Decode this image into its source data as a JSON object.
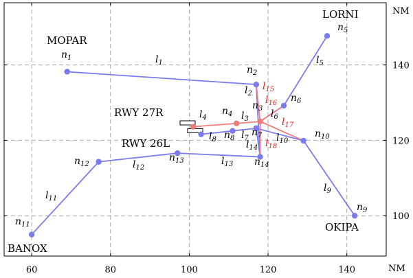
{
  "axes": {
    "x_unit": "NM",
    "y_unit": "NM",
    "x_ticks": [
      "60",
      "80",
      "100",
      "120",
      "140"
    ],
    "y_ticks": [
      "100",
      "120",
      "140"
    ],
    "xlim": [
      53,
      150
    ],
    "ylim": [
      89.3,
      156.5
    ],
    "grid": "dashed"
  },
  "colors": {
    "route": "#7b7bf0",
    "red_route": "#f07b7b",
    "red_label": "#e01e1e",
    "grid": "#aaaaaa",
    "node": "#7b7bf0",
    "red_node": "#f07b7b"
  },
  "place_names": {
    "MOPAR": "MOPAR",
    "LORNI": "LORNI",
    "BANOX": "BANOX",
    "OKIPA": "OKIPA",
    "RWY27R": "RWY 27R",
    "RWY26L": "RWY 26L"
  },
  "nodes": [
    {
      "id": "n1",
      "base": "n",
      "sub": "1",
      "x": 69,
      "y": 138.2
    },
    {
      "id": "n2",
      "base": "n",
      "sub": "2",
      "x": 117,
      "y": 134.8
    },
    {
      "id": "n3",
      "base": "n",
      "sub": "3",
      "x": 118,
      "y": 125.0
    },
    {
      "id": "n4",
      "base": "n",
      "sub": "4",
      "x": 112,
      "y": 124.5
    },
    {
      "id": "n5",
      "base": "n",
      "sub": "5",
      "x": 135,
      "y": 147.7
    },
    {
      "id": "n6",
      "base": "n",
      "sub": "6",
      "x": 124,
      "y": 129.2
    },
    {
      "id": "n7",
      "base": "n",
      "sub": "7",
      "x": 117,
      "y": 123.2
    },
    {
      "id": "n8",
      "base": "n",
      "sub": "8",
      "x": 111,
      "y": 122.5
    },
    {
      "id": "n9",
      "base": "n",
      "sub": "9",
      "x": 142,
      "y": 100.0
    },
    {
      "id": "n10",
      "base": "n",
      "sub": "10",
      "x": 129,
      "y": 119.9
    },
    {
      "id": "n11",
      "base": "n",
      "sub": "11",
      "x": 60,
      "y": 95.0
    },
    {
      "id": "n12",
      "base": "n",
      "sub": "12",
      "x": 77,
      "y": 114.3
    },
    {
      "id": "n13",
      "base": "n",
      "sub": "13",
      "x": 97,
      "y": 116.6
    },
    {
      "id": "n14",
      "base": "n",
      "sub": "14",
      "x": 118,
      "y": 115.6
    },
    {
      "id": "rA",
      "x": 101,
      "y": 123.6
    },
    {
      "id": "rB",
      "x": 103,
      "y": 121.6
    }
  ],
  "links": [
    {
      "id": "l1",
      "base": "l",
      "sub": "1",
      "from": "n1",
      "to": "n2",
      "red": false
    },
    {
      "id": "l2",
      "base": "l",
      "sub": "2",
      "from": "n2",
      "to": "n14",
      "red": false
    },
    {
      "id": "l3",
      "base": "l",
      "sub": "3",
      "from": "n4",
      "to": "n3",
      "red": true
    },
    {
      "id": "l4",
      "base": "l",
      "sub": "4",
      "from": "rA",
      "to": "n4",
      "red": true
    },
    {
      "id": "l5",
      "base": "l",
      "sub": "5",
      "from": "n6",
      "to": "n5",
      "red": false
    },
    {
      "id": "l6",
      "base": "l",
      "sub": "6",
      "from": "n3",
      "to": "n6",
      "red": false
    },
    {
      "id": "l7",
      "base": "l",
      "sub": "7",
      "from": "n8",
      "to": "n7",
      "red": false
    },
    {
      "id": "l8",
      "base": "l",
      "sub": "8",
      "from": "rB",
      "to": "n8",
      "red": false
    },
    {
      "id": "l9",
      "base": "l",
      "sub": "9",
      "from": "n10",
      "to": "n9",
      "red": false
    },
    {
      "id": "l10",
      "base": "l",
      "sub": "10",
      "from": "n7",
      "to": "n10",
      "red": false
    },
    {
      "id": "l11",
      "base": "l",
      "sub": "11",
      "from": "n11",
      "to": "n12",
      "red": false
    },
    {
      "id": "l12",
      "base": "l",
      "sub": "12",
      "from": "n12",
      "to": "n13",
      "red": false
    },
    {
      "id": "l13",
      "base": "l",
      "sub": "13",
      "from": "n13",
      "to": "n14",
      "red": false
    },
    {
      "id": "l14",
      "base": "l",
      "sub": "14",
      "from": "n14",
      "to": "n7",
      "red": false
    },
    {
      "id": "l15",
      "base": "l",
      "sub": "15",
      "from": "n2",
      "to": "n3",
      "red": true
    },
    {
      "id": "l16",
      "base": "l",
      "sub": "16",
      "from": "n3",
      "to": "n6",
      "red": true
    },
    {
      "id": "l17",
      "base": "l",
      "sub": "17",
      "from": "n3",
      "to": "n10",
      "red": true
    },
    {
      "id": "l18",
      "base": "l",
      "sub": "18",
      "from": "n3",
      "to": "n14",
      "red": true
    }
  ]
}
